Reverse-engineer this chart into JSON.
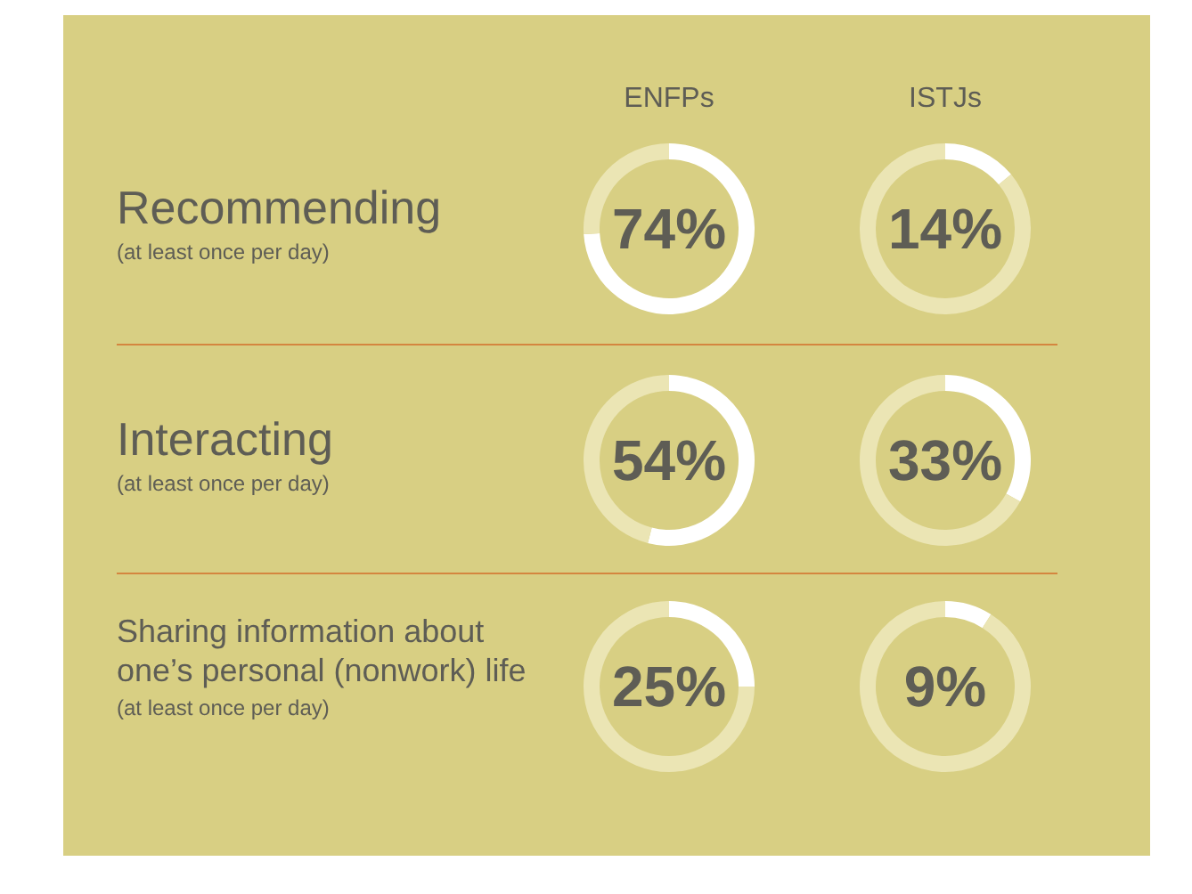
{
  "chart_data": [
    {
      "type": "other",
      "annotations": [
        "ENFPs",
        "ISTJs",
        "Recommending",
        "(at least once per day)",
        "Interacting",
        "(at least once per day)",
        "Sharing information about\none’s personal (nonwork) life",
        "(at least once per day)"
      ]
    },
    {
      "type": "donut",
      "categories": [
        null,
        null
      ],
      "values": [
        74,
        26
      ],
      "colors": [
        "#ffffff",
        "#ebe5b4"
      ],
      "annotations": [
        "74%"
      ]
    },
    {
      "type": "donut",
      "categories": [
        null,
        null
      ],
      "values": [
        14,
        86
      ],
      "colors": [
        "#ffffff",
        "#ebe5b4"
      ],
      "annotations": [
        "14%"
      ]
    },
    {
      "type": "donut",
      "categories": [
        null,
        null
      ],
      "values": [
        54,
        46
      ],
      "colors": [
        "#ffffff",
        "#ebe5b4"
      ],
      "annotations": [
        "54%"
      ]
    },
    {
      "type": "donut",
      "categories": [
        null,
        null
      ],
      "values": [
        33,
        67
      ],
      "colors": [
        "#ffffff",
        "#ebe5b4"
      ],
      "annotations": [
        "33%"
      ]
    },
    {
      "type": "donut",
      "categories": [
        null,
        null
      ],
      "values": [
        25,
        75
      ],
      "colors": [
        "#ffffff",
        "#ebe5b4"
      ],
      "annotations": [
        "25%"
      ]
    },
    {
      "type": "donut",
      "categories": [
        null,
        null
      ],
      "values": [
        9,
        91
      ],
      "colors": [
        "#ffffff",
        "#ebe5b4"
      ],
      "annotations": [
        "9%"
      ]
    }
  ]
}
